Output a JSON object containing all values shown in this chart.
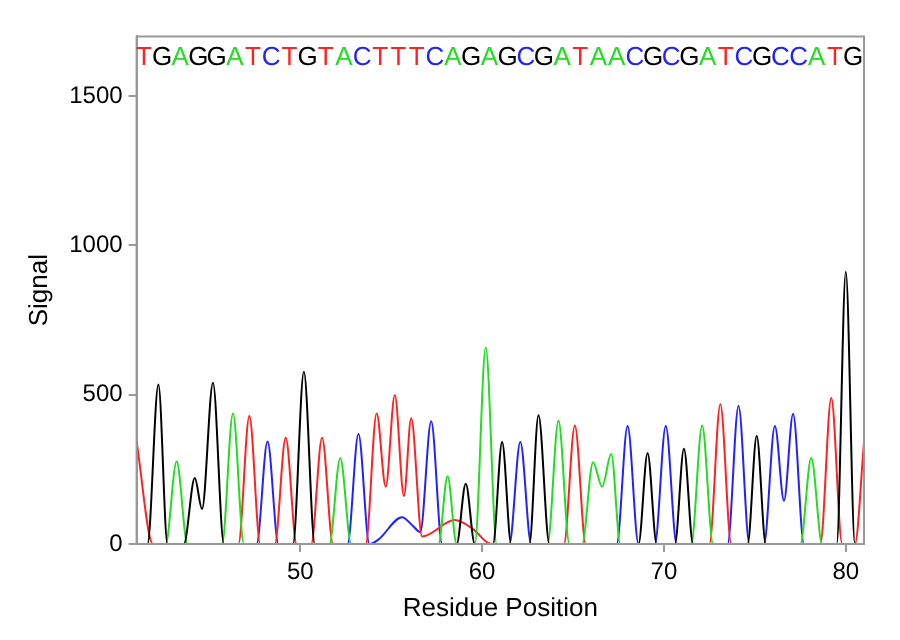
{
  "chart_data": {
    "type": "line",
    "xlabel": "Residue Position",
    "ylabel": "Signal",
    "xlim": [
      41,
      81
    ],
    "xticks": [
      50,
      60,
      70,
      80
    ],
    "ylim": [
      0,
      1700
    ],
    "yticks": [
      0,
      500,
      1000,
      1500
    ],
    "grid": false,
    "legend": false,
    "marker": "none",
    "line_style": "solid",
    "annotations": [
      "T",
      "G",
      "A",
      "G",
      "G",
      "A",
      "T",
      "C",
      "T",
      "G",
      "T",
      "A",
      "C",
      "T",
      "T",
      "T",
      "C",
      "A",
      "G",
      "A",
      "G",
      "C",
      "G",
      "A",
      "T",
      "A",
      "A",
      "C",
      "G",
      "C",
      "G",
      "A",
      "T",
      "C",
      "G",
      "C",
      "C",
      "A",
      "T",
      "G"
    ],
    "series": [
      {
        "color": "#000000",
        "x": [
          41,
          41.6,
          42.2,
          42.7,
          43.6,
          44.2,
          44.6,
          45.2,
          45.8,
          49.6,
          50.2,
          50.8,
          58.6,
          59.1,
          59.6,
          60.6,
          61.1,
          61.6,
          62.6,
          63.1,
          63.7,
          68.6,
          69.1,
          69.6,
          70.6,
          71.1,
          71.6,
          74.6,
          75.1,
          75.6,
          79.5,
          80.0,
          80.5,
          81
        ],
        "values": [
          0,
          0,
          534,
          0,
          0,
          221,
          117,
          540,
          0,
          0,
          577,
          0,
          0,
          202,
          0,
          0,
          342,
          0,
          0,
          431,
          0,
          0,
          305,
          0,
          0,
          319,
          0,
          0,
          362,
          0,
          0,
          912,
          0,
          0
        ]
      },
      {
        "color": "#22dd22",
        "x": [
          41,
          42.6,
          43.2,
          43.8,
          45.7,
          46.3,
          46.9,
          51.6,
          52.2,
          52.8,
          57.6,
          58.1,
          58.6,
          59.6,
          60.2,
          60.8,
          63.6,
          64.2,
          64.8,
          65.5,
          66.1,
          66.6,
          67.1,
          67.6,
          71.5,
          72.1,
          72.7,
          77.5,
          78.1,
          78.7,
          81
        ],
        "values": [
          0,
          0,
          276,
          0,
          0,
          437,
          0,
          0,
          288,
          0,
          0,
          227,
          0,
          0,
          658,
          0,
          0,
          413,
          0,
          0,
          274,
          192,
          301,
          0,
          0,
          397,
          0,
          0,
          288,
          0,
          0
        ]
      },
      {
        "color": "#ff2222",
        "x": [
          41,
          41.9,
          46.6,
          47.2,
          47.8,
          48.6,
          49.2,
          49.8,
          50.6,
          51.2,
          51.8,
          53.6,
          54.2,
          54.7,
          55.2,
          55.7,
          56.1,
          56.7,
          58.5,
          59.5,
          60.5,
          64.5,
          65.1,
          65.7,
          72.5,
          73.1,
          73.7,
          78.6,
          79.2,
          79.8,
          80.5,
          81
        ],
        "values": [
          343,
          0,
          0,
          429,
          0,
          0,
          356,
          0,
          0,
          356,
          0,
          0,
          437,
          192,
          499,
          161,
          421,
          25,
          80,
          50,
          0,
          0,
          397,
          0,
          0,
          468,
          0,
          0,
          489,
          0,
          0,
          340
        ]
      },
      {
        "color": "#2222ff",
        "x": [
          41,
          47.6,
          48.2,
          48.8,
          52.6,
          53.2,
          53.8,
          54.3,
          55.6,
          56.2,
          56.6,
          57.2,
          57.8,
          61.5,
          62.1,
          62.7,
          67.4,
          68.0,
          68.6,
          69.5,
          70.1,
          70.7,
          73.5,
          74.1,
          74.7,
          75.5,
          76.1,
          76.6,
          77.1,
          77.7,
          81
        ],
        "values": [
          0,
          0,
          343,
          0,
          0,
          368,
          0,
          15,
          90,
          60,
          40,
          411,
          0,
          0,
          342,
          0,
          0,
          395,
          0,
          0,
          395,
          0,
          0,
          462,
          0,
          0,
          395,
          145,
          436,
          0,
          0
        ]
      }
    ]
  }
}
